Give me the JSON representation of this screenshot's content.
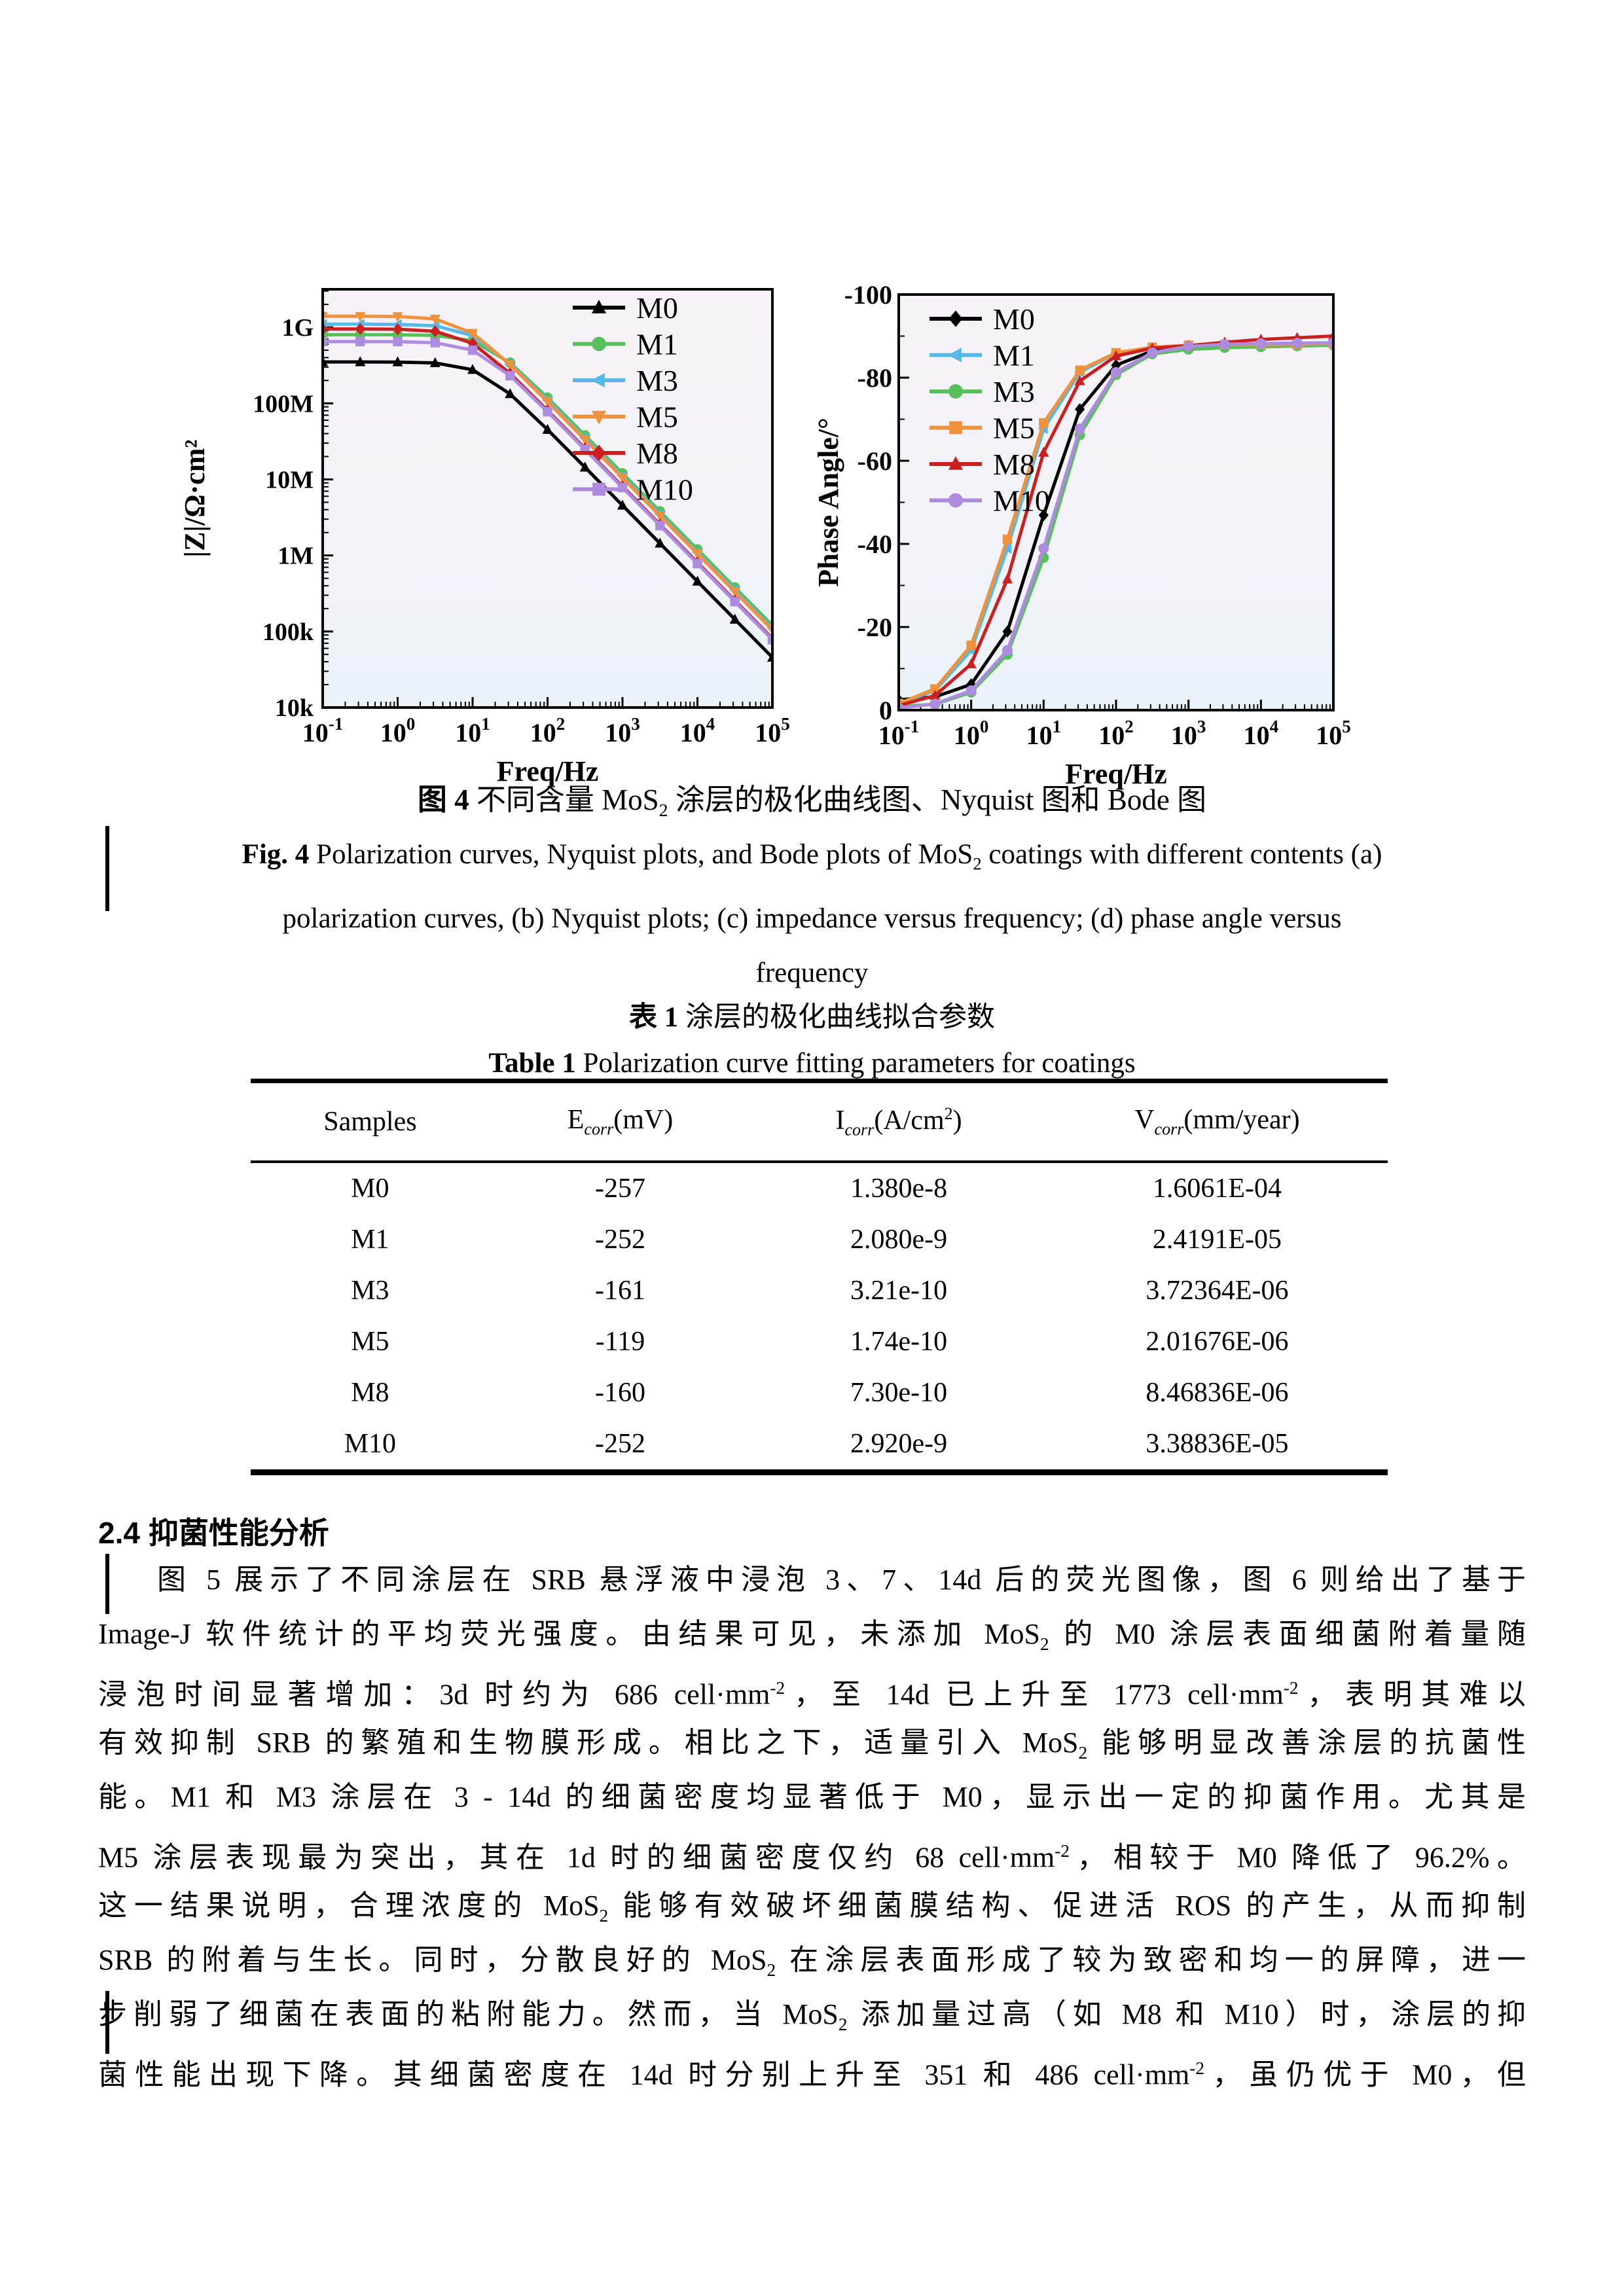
{
  "figure": {
    "caption_cn": [
      {
        "b": "图 4"
      },
      {
        "t": " 不同含量 MoS"
      },
      {
        "sub": "2"
      },
      {
        "t": " 涂层的极化曲线图、Nyquist 图和 Bode 图"
      }
    ],
    "caption_en_lines": [
      [
        {
          "b": "Fig. 4"
        },
        {
          "t": " Polarization curves, Nyquist plots, and Bode plots of MoS"
        },
        {
          "sub": "2"
        },
        {
          "t": " coatings with different contents (a)"
        }
      ],
      [
        {
          "t": "polarization curves, (b) Nyquist plots; (c) impedance versus frequency; (d) phase angle versus"
        }
      ],
      [
        {
          "t": "frequency"
        }
      ]
    ]
  },
  "chart_data": [
    {
      "id": "impedance-bode",
      "type": "line",
      "x_scale": "log",
      "y_scale": "log",
      "xlabel": "Freq/Hz",
      "ylabel": "|Z|/Ω·cm²",
      "xlim_exp": [
        -1,
        5
      ],
      "ylim_exp": [
        4,
        9.5
      ],
      "x_tick_exponents": [
        -1,
        0,
        1,
        2,
        3,
        4,
        5
      ],
      "y_ticks": [
        {
          "exp": 4,
          "label": "10k"
        },
        {
          "exp": 5,
          "label": "100k"
        },
        {
          "exp": 6,
          "label": "1M"
        },
        {
          "exp": 7,
          "label": "10M"
        },
        {
          "exp": 8,
          "label": "100M"
        },
        {
          "exp": 9,
          "label": "1G"
        }
      ],
      "legend_position": "top-right",
      "grid": false,
      "x_exponents": [
        -1,
        -0.5,
        0,
        0.5,
        1,
        1.5,
        2,
        2.5,
        3,
        3.5,
        4,
        4.5,
        5
      ],
      "series": [
        {
          "name": "M0",
          "color": "#000000",
          "marker": "triangle-up",
          "values": [
            350000000.0,
            350000000.0,
            349000000.0,
            340000000.0,
            277000000.0,
            133000000.0,
            45100000.0,
            14400000.0,
            4550000.0,
            1440000.0,
            455000.0,
            144000.0,
            45500.0
          ]
        },
        {
          "name": "M1",
          "color": "#57c05a",
          "marker": "circle",
          "values": [
            800000000.0,
            800000000.0,
            798000000.0,
            783000000.0,
            666000000.0,
            343000000.0,
            119000000.0,
            37900000.0,
            12000000.0,
            3790000.0,
            1200000.0,
            379000.0,
            120000.0
          ]
        },
        {
          "name": "M3",
          "color": "#55b9ea",
          "marker": "triangle-left",
          "values": [
            1100000000.0,
            1100000000.0,
            1090000000.0,
            1050000000.0,
            778000000.0,
            332000000.0,
            110000000.0,
            34800000.0,
            11000000.0,
            3480000.0,
            1100000.0,
            348000.0,
            110000.0
          ]
        },
        {
          "name": "M5",
          "color": "#f0923c",
          "marker": "triangle-down",
          "values": [
            1400000000.0,
            1400000000.0,
            1390000000.0,
            1290000000.0,
            840000000.0,
            323000000.0,
            105000000.0,
            33200000.0,
            10500000.0,
            3320000.0,
            1050000.0,
            332000.0,
            105000.0
          ]
        },
        {
          "name": "M8",
          "color": "#cc2020",
          "marker": "diamond",
          "values": [
            950000000.0,
            950000000.0,
            943000000.0,
            888000000.0,
            617000000.0,
            247000000.0,
            80500000.0,
            25500000.0,
            8080000.0,
            2550000.0,
            808000.0,
            255000.0,
            80700.0
          ]
        },
        {
          "name": "M10",
          "color": "#ad8ce0",
          "marker": "square",
          "values": [
            650000000.0,
            650000000.0,
            648000000.0,
            628000000.0,
            500000000.0,
            231000000.0,
            77500000.0,
            24700000.0,
            7800000.0,
            2470000.0,
            780000.0,
            247000.0,
            78000.0
          ]
        }
      ]
    },
    {
      "id": "phase-bode",
      "type": "line",
      "x_scale": "log",
      "y_scale": "linear",
      "xlabel": "Freq/Hz",
      "ylabel": "Phase Angle/°",
      "xlim_exp": [
        -1,
        5
      ],
      "ylim": [
        0,
        -100
      ],
      "x_tick_exponents": [
        -1,
        0,
        1,
        2,
        3,
        4,
        5
      ],
      "y_tick_values": [
        0,
        -20,
        -40,
        -60,
        -80,
        -100
      ],
      "y_minor_step": 10,
      "legend_position": "top-left",
      "grid": false,
      "x_exponents": [
        -1,
        -0.5,
        0,
        0.5,
        1,
        1.5,
        2,
        2.5,
        3,
        3.5,
        4,
        4.5,
        5
      ],
      "series": [
        {
          "name": "M0",
          "color": "#000000",
          "marker": "diamond",
          "values": [
            -2.5,
            -3.2,
            -6.2,
            -18.9,
            -46.9,
            -72.4,
            -83.0,
            -86.4,
            -87.5,
            -87.8,
            -88.0,
            -88.0,
            -88.0
          ]
        },
        {
          "name": "M1",
          "color": "#55b9ea",
          "marker": "triangle-left",
          "values": [
            -1.5,
            -4.7,
            -14.4,
            -38.9,
            -67.7,
            -81.3,
            -85.9,
            -87.3,
            -87.8,
            -88.0,
            -88.0,
            -88.0,
            -88.0
          ]
        },
        {
          "name": "M3",
          "color": "#57c05a",
          "marker": "circle",
          "values": [
            -0.9,
            -1.4,
            -4.3,
            -13.4,
            -36.7,
            -66.2,
            -80.7,
            -85.7,
            -86.8,
            -87.2,
            -87.4,
            -87.6,
            -87.8
          ]
        },
        {
          "name": "M5",
          "color": "#f0923c",
          "marker": "square",
          "values": [
            -1.6,
            -5.1,
            -15.6,
            -41.1,
            -69.1,
            -81.8,
            -86.0,
            -87.3,
            -87.8,
            -88.0,
            -88.0,
            -88.0,
            -88.2
          ]
        },
        {
          "name": "M8",
          "color": "#cc2020",
          "marker": "triangle-up",
          "values": [
            -1.1,
            -3.5,
            -11.1,
            -31.5,
            -62.0,
            -79.2,
            -85.2,
            -87.1,
            -87.7,
            -88.5,
            -89.2,
            -89.6,
            -90.0
          ]
        },
        {
          "name": "M10",
          "color": "#ad8ce0",
          "marker": "circle",
          "values": [
            -0.5,
            -1.5,
            -4.7,
            -14.4,
            -38.9,
            -67.7,
            -81.3,
            -86.0,
            -87.5,
            -88.0,
            -88.2,
            -88.3,
            -88.4
          ]
        }
      ]
    }
  ],
  "table": {
    "caption_cn": [
      {
        "b": "表 1"
      },
      {
        "t": " 涂层的极化曲线拟合参数"
      }
    ],
    "caption_en": [
      {
        "b": "Table 1"
      },
      {
        "t": " Polarization curve fitting parameters for coatings"
      }
    ],
    "headers": [
      [
        {
          "t": "Samples"
        }
      ],
      [
        {
          "t": "E"
        },
        {
          "isub": "corr"
        },
        {
          "t": "(mV)"
        }
      ],
      [
        {
          "t": "I"
        },
        {
          "isub": "corr"
        },
        {
          "t": "(A/cm"
        },
        {
          "sup": "2"
        },
        {
          "t": ")"
        }
      ],
      [
        {
          "t": "V"
        },
        {
          "isub": "corr"
        },
        {
          "t": "(mm/year)"
        }
      ]
    ],
    "rows": [
      [
        "M0",
        "-257",
        "1.380e-8",
        "1.6061E-04"
      ],
      [
        "M1",
        "-252",
        "2.080e-9",
        "2.4191E-05"
      ],
      [
        "M3",
        "-161",
        "3.21e-10",
        "3.72364E-06"
      ],
      [
        "M5",
        "-119",
        "1.74e-10",
        "2.01676E-06"
      ],
      [
        "M8",
        "-160",
        "7.30e-10",
        "8.46836E-06"
      ],
      [
        "M10",
        "-252",
        "2.920e-9",
        "3.38836E-05"
      ]
    ]
  },
  "section": {
    "heading": "2.4  抑菌性能分析"
  },
  "paragraph": {
    "lines": [
      [
        {
          "t": "图 5 展示了不同涂层在 SRB 悬浮液中浸泡 3、7、14d 后的荧光图像，图 6 则给出了基于"
        }
      ],
      [
        {
          "t": "Image-J 软件统计的平均荧光强度。由结果可见，未添加 MoS"
        },
        {
          "sub": "2"
        },
        {
          "t": " 的 M0 涂层表面细菌附着量随"
        }
      ],
      [
        {
          "t": "浸泡时间显著增加：3d 时约为 686 cell·mm"
        },
        {
          "sup": "-2"
        },
        {
          "t": "，至 14d 已上升至 1773 cell·mm"
        },
        {
          "sup": "-2"
        },
        {
          "t": "，表明其难以"
        }
      ],
      [
        {
          "t": "有效抑制 SRB 的繁殖和生物膜形成。相比之下，适量引入 MoS"
        },
        {
          "sub": "2"
        },
        {
          "t": " 能够明显改善涂层的抗菌性"
        }
      ],
      [
        {
          "t": "能。M1 和 M3 涂层在 3 - 14d 的细菌密度均显著低于 M0，显示出一定的抑菌作用。尤其是"
        }
      ],
      [
        {
          "t": "M5 涂层表现最为突出，其在 1d 时的细菌密度仅约 68 cell·mm"
        },
        {
          "sup": "-2"
        },
        {
          "t": "，相较于 M0 降低了 96.2%。"
        }
      ],
      [
        {
          "t": "这一结果说明，合理浓度的 MoS"
        },
        {
          "sub": "2"
        },
        {
          "t": " 能够有效破坏细菌膜结构、促进活 ROS 的产生，从而抑制"
        }
      ],
      [
        {
          "t": "SRB 的附着与生长。同时，分散良好的 MoS"
        },
        {
          "sub": "2"
        },
        {
          "t": " 在涂层表面形成了较为致密和均一的屏障，进一"
        }
      ],
      [
        {
          "t": "步削弱了细菌在表面的粘附能力。然而，当 MoS"
        },
        {
          "sub": "2"
        },
        {
          "t": " 添加量过高（如 M8 和 M10）时，涂层的抑"
        }
      ],
      [
        {
          "t": "菌性能出现下降。其细菌密度在 14d 时分别上升至 351 和 486 cell·mm"
        },
        {
          "sup": "-2"
        },
        {
          "t": "，虽仍优于 M0，但"
        }
      ]
    ]
  }
}
